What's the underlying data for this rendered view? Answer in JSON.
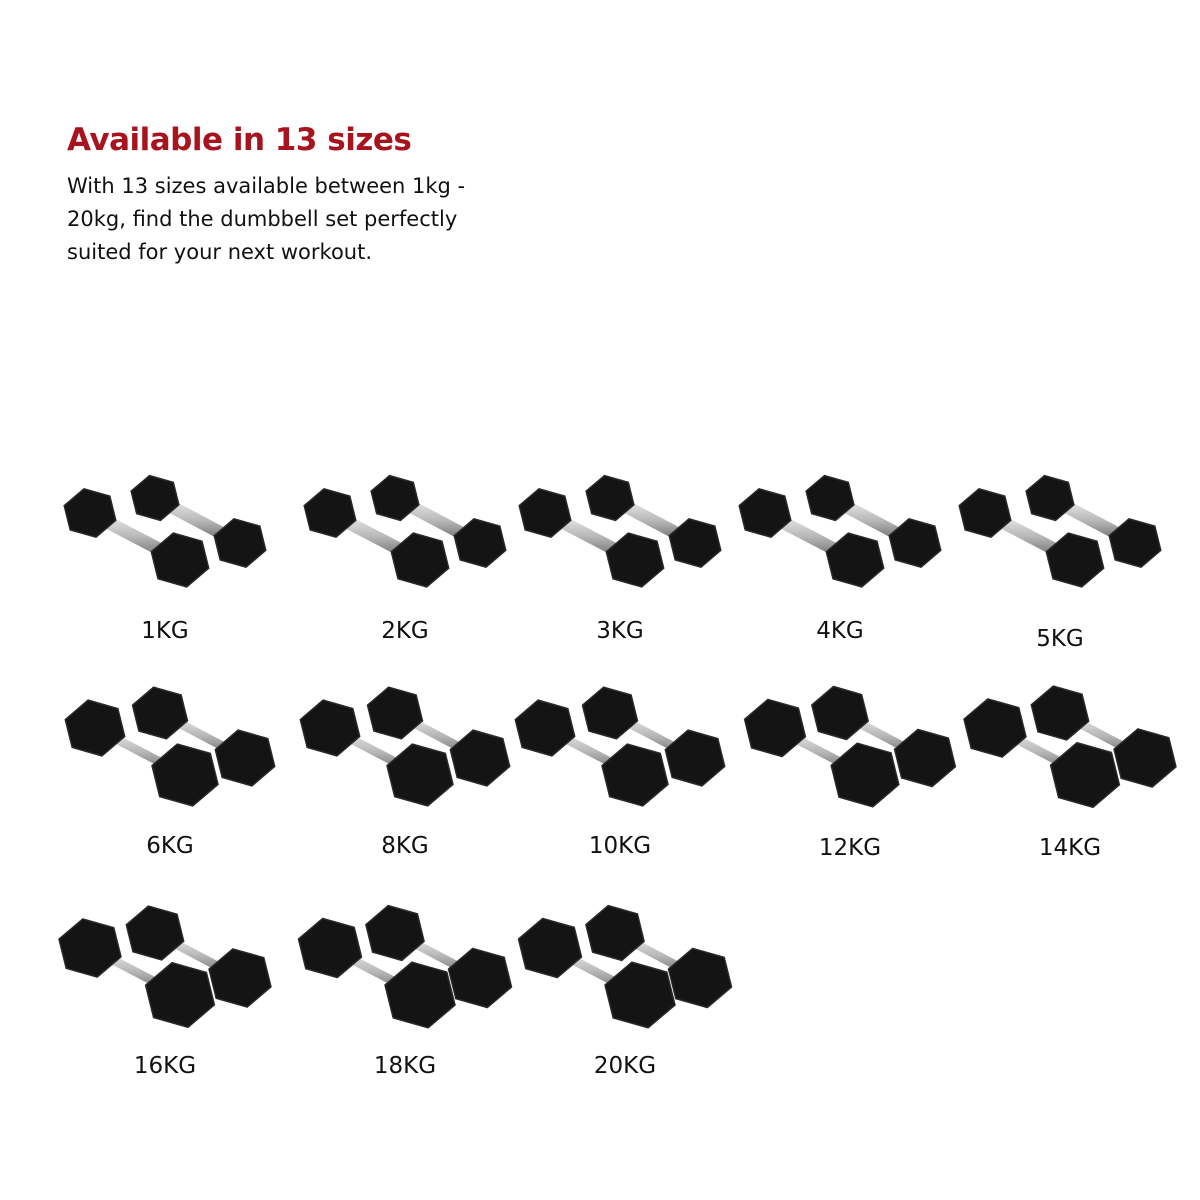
{
  "header": {
    "title": "Available in 13 sizes",
    "description": "With 13 sizes available between 1kg - 20kg, find the dumbbell set perfectly suited for your next workout."
  },
  "colors": {
    "accent": "#a8141e",
    "rubber": "#141414",
    "chrome": "#b8b8b8"
  },
  "sizes": [
    {
      "label": "1KG"
    },
    {
      "label": "2KG"
    },
    {
      "label": "3KG"
    },
    {
      "label": "4KG"
    },
    {
      "label": "5KG"
    },
    {
      "label": "6KG"
    },
    {
      "label": "8KG"
    },
    {
      "label": "10KG"
    },
    {
      "label": "12KG"
    },
    {
      "label": "14KG"
    },
    {
      "label": "16KG"
    },
    {
      "label": "18KG"
    },
    {
      "label": "20KG"
    }
  ]
}
